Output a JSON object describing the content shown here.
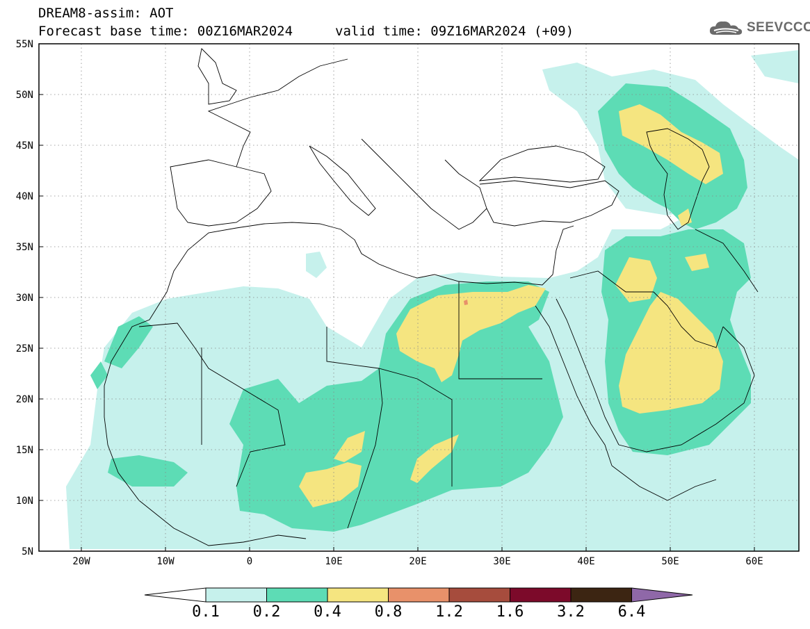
{
  "title": {
    "line1": "DREAM8-assim: AOT",
    "line2": "Forecast base time: 00Z16MAR2024",
    "valid": "valid time: 09Z16MAR2024 (+09)"
  },
  "logo": {
    "text": "SEEVCCC",
    "icon": "cloud-icon"
  },
  "map": {
    "lat_labels": [
      "55N",
      "50N",
      "45N",
      "40N",
      "35N",
      "30N",
      "25N",
      "20N",
      "15N",
      "10N",
      "5N"
    ],
    "lon_labels": [
      "20W",
      "10W",
      "0",
      "10E",
      "20E",
      "30E",
      "40E",
      "50E",
      "60E"
    ],
    "lat_range": [
      5,
      55
    ],
    "lon_range": [
      -25,
      65
    ],
    "grid": "dotted"
  },
  "colorbar": {
    "labels": [
      "0.1",
      "0.2",
      "0.4",
      "0.8",
      "1.2",
      "1.6",
      "3.2",
      "6.4"
    ],
    "colors": [
      "#ffffff",
      "#c6f1ec",
      "#5ddcb5",
      "#f5e580",
      "#e8916a",
      "#a64c3d",
      "#7c0a2a",
      "#3c2512",
      "#8f68a8"
    ]
  },
  "field_colors": {
    "c01": "#c6f1ec",
    "c02": "#5ddcb5",
    "c04": "#f5e580",
    "c08": "#e8916a"
  }
}
